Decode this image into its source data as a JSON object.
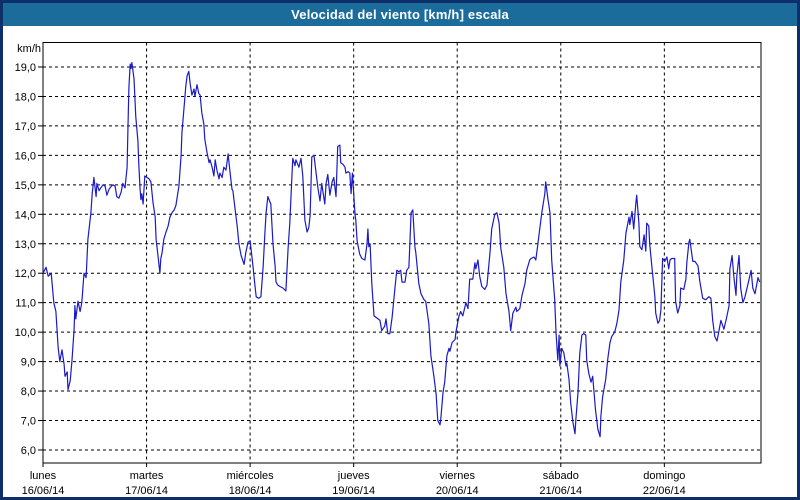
{
  "window": {
    "title": "Velocidad del viento [km/h] escala"
  },
  "colors": {
    "titlebar_bg": "#1b6c9b",
    "titlebar_text": "#ffffff",
    "frame_border": "#0d2f69",
    "plot_bg": "#ffffff",
    "line": "#1a1ac8",
    "grid": "#000000",
    "text": "#000000"
  },
  "chart_data": {
    "type": "line",
    "title": "Velocidad del viento [km/h] escala",
    "grid": "dashed",
    "legend": "none",
    "y_axis": {
      "unit_label": "km/h",
      "min": 6.0,
      "max": 19.0,
      "tick_step": 1.0,
      "tick_labels": [
        "19,0",
        "18,0",
        "17,0",
        "16,0",
        "15,0",
        "14,0",
        "13,0",
        "12,0",
        "11,0",
        "10,0",
        "9,0",
        "8,0",
        "7,0",
        "6,0"
      ]
    },
    "x_axis": {
      "kind": "time",
      "hours_shown": 166.4,
      "day_length_hours": 24,
      "days": [
        {
          "name": "lunes",
          "date": "16/06/14"
        },
        {
          "name": "martes",
          "date": "17/06/14"
        },
        {
          "name": "miércoles",
          "date": "18/06/14"
        },
        {
          "name": "jueves",
          "date": "19/06/14"
        },
        {
          "name": "viernes",
          "date": "20/06/14"
        },
        {
          "name": "sábado",
          "date": "21/06/14"
        },
        {
          "name": "domingo",
          "date": "22/06/14"
        }
      ]
    },
    "series": [
      {
        "name": "Velocidad del viento",
        "x_hours": [
          0,
          0.7,
          1.2,
          1.9,
          2.5,
          3,
          3.5,
          3.9,
          4.4,
          4.9,
          5.1,
          5.6,
          5.8,
          6.3,
          6.7,
          7.2,
          7.4,
          7.6,
          8.1,
          8.6,
          9,
          9.5,
          10,
          10.4,
          11.1,
          11.4,
          11.8,
          12.3,
          12.5,
          13,
          13.4,
          13.9,
          14.4,
          14.8,
          15.3,
          15.8,
          16.2,
          16.7,
          17.1,
          17.6,
          18.1,
          18.5,
          19,
          19.5,
          19.7,
          19.9,
          20.2,
          20.4,
          20.6,
          21.1,
          21.5,
          22,
          22.2,
          22.5,
          22.7,
          22.9,
          23.2,
          23.4,
          23.6,
          24.1,
          24.6,
          25,
          25.5,
          26,
          26.2,
          26.6,
          27.1,
          27.3,
          27.6,
          28,
          28.5,
          29,
          29.4,
          29.9,
          30.4,
          30.8,
          31,
          31.5,
          32,
          32.2,
          32.7,
          33.1,
          33.4,
          33.8,
          34.1,
          34.5,
          35,
          35.2,
          35.7,
          36.1,
          36.4,
          36.8,
          37.3,
          37.5,
          38,
          38.5,
          38.7,
          39.2,
          39.6,
          39.9,
          40.3,
          40.8,
          41,
          41.5,
          41.9,
          42.4,
          42.9,
          43.3,
          43.8,
          44,
          44.5,
          45,
          45.4,
          45.9,
          46.6,
          47,
          47.5,
          48,
          48.4,
          48.7,
          49.1,
          49.4,
          50,
          50.5,
          51,
          51.4,
          51.7,
          52.1,
          52.8,
          53.3,
          53.8,
          54,
          54.4,
          54.9,
          55.6,
          56.3,
          56.8,
          57.2,
          57.7,
          57.9,
          58.4,
          58.6,
          59.3,
          59.8,
          60.2,
          60.7,
          61.2,
          61.6,
          61.9,
          62.3,
          62.8,
          63.3,
          63.7,
          64.2,
          64.6,
          65.3,
          65.6,
          66,
          66.5,
          67,
          67.4,
          67.9,
          68.3,
          68.8,
          69,
          69.5,
          70,
          70.2,
          70.7,
          71.1,
          71.4,
          71.7,
          72.3,
          72.5,
          72.8,
          73.4,
          73.9,
          74.6,
          75.1,
          75.3,
          75.5,
          75.8,
          76.2,
          76.7,
          77.2,
          78.1,
          78.5,
          79.2,
          79.5,
          79.9,
          80.4,
          80.9,
          81.6,
          82,
          82.5,
          82.9,
          83.2,
          83.9,
          84.3,
          84.8,
          85.3,
          85.7,
          86.2,
          86.4,
          87.1,
          87.6,
          88.3,
          88.7,
          89.4,
          89.9,
          90.6,
          91.1,
          91.5,
          92,
          92.2,
          92.7,
          93.1,
          93.6,
          94.1,
          94.3,
          94.8,
          95.5,
          95.7,
          96.4,
          96.8,
          97.3,
          98,
          98.5,
          98.9,
          99.6,
          100.1,
          100.3,
          100.8,
          101.2,
          101.7,
          102.4,
          102.9,
          103.6,
          104,
          104.7,
          105.2,
          105.7,
          106.1,
          106.8,
          107.3,
          108,
          108.4,
          108.9,
          109.6,
          109.8,
          110.5,
          111,
          111.7,
          112.1,
          112.8,
          113.1,
          113.8,
          114.2,
          114.7,
          115.2,
          115.6,
          116.3,
          116.5,
          117,
          117.5,
          117.9,
          118.6,
          118.9,
          119.3,
          119.6,
          119.8,
          120.2,
          120.7,
          121.2,
          121.4,
          121.9,
          122.3,
          122.8,
          123.3,
          123.5,
          124,
          124.4,
          124.9,
          125.3,
          125.8,
          126,
          126.5,
          127,
          127.4,
          127.9,
          128.1,
          128.6,
          129.1,
          129.3,
          129.7,
          130.4,
          130.9,
          131.4,
          131.8,
          132.5,
          133,
          133.5,
          133.9,
          134.6,
          135.1,
          135.8,
          136,
          136.5,
          136.9,
          137.4,
          137.6,
          138.1,
          138.3,
          138.8,
          139.3,
          139.7,
          139.9,
          140.4,
          140.6,
          141.1,
          141.8,
          142,
          142.5,
          142.9,
          143.2,
          143.6,
          144.1,
          144.6,
          145,
          145.3,
          145.7,
          146.4,
          146.6,
          147.1,
          147.6,
          147.8,
          148.5,
          149,
          149.2,
          149.7,
          149.9,
          150.6,
          151.1,
          151.8,
          152.2,
          152.9,
          153.6,
          154.3,
          154.8,
          155.2,
          155.7,
          156.2,
          156.6,
          157.1,
          157.8,
          158.3,
          159,
          159.2,
          159.7,
          160.1,
          160.6,
          160.8,
          161.3,
          161.7,
          162.2,
          162.7,
          163.4,
          164.1,
          164.5,
          165,
          165.7,
          166.1
        ],
        "values": [
          12,
          12.2,
          11.9,
          12,
          11,
          10.7,
          9.5,
          9,
          9.4,
          8.9,
          8.5,
          8.65,
          8.05,
          8.35,
          9,
          10.1,
          10.9,
          10.45,
          11.05,
          10.7,
          11,
          12,
          11.85,
          13.15,
          14.05,
          14.7,
          15.25,
          14.6,
          15.05,
          14.8,
          14.9,
          15,
          14.95,
          14.65,
          14.85,
          14.95,
          15,
          14.95,
          14.6,
          14.55,
          14.75,
          15.05,
          14.9,
          15.6,
          17,
          18.3,
          19.1,
          18.95,
          19.15,
          18.6,
          17.3,
          16.5,
          15.7,
          14.85,
          14.5,
          14.7,
          14.35,
          14.85,
          15.3,
          15.25,
          15.2,
          15.1,
          14.4,
          13.9,
          13.15,
          12.65,
          12,
          12.5,
          12.7,
          13.15,
          13.4,
          13.6,
          13.9,
          14.05,
          14.15,
          14.3,
          14.5,
          14.95,
          16,
          16.75,
          17.65,
          18.35,
          18.7,
          18.85,
          18.45,
          18.05,
          18.25,
          18,
          18.4,
          18.1,
          18.05,
          17.45,
          17.05,
          16.55,
          16.1,
          15.75,
          15.85,
          15.6,
          15.3,
          15.85,
          15.5,
          15.2,
          15.4,
          15.25,
          15.6,
          15.5,
          16.05,
          15.5,
          14.85,
          14.8,
          14.2,
          13.6,
          13,
          12.6,
          12.3,
          12.7,
          13.05,
          13.1,
          12.6,
          12.2,
          11.6,
          11.2,
          11.15,
          11.2,
          12.2,
          13.3,
          14.05,
          14.6,
          14.35,
          13,
          12.25,
          11.7,
          11.6,
          11.55,
          11.5,
          11.4,
          12.85,
          13.7,
          15.35,
          15.9,
          15.65,
          15.85,
          15.6,
          15.9,
          15.3,
          13.8,
          13.4,
          13.55,
          13.95,
          15.95,
          16,
          15.4,
          14.9,
          14.45,
          15.05,
          14.35,
          15.05,
          15.35,
          14.65,
          15.1,
          15.25,
          14.6,
          16.3,
          16.35,
          15.75,
          15.7,
          15.6,
          15.4,
          15.45,
          15.4,
          14.7,
          15.4,
          14,
          13.8,
          13.1,
          12.65,
          12.5,
          12.45,
          13,
          13.5,
          12.9,
          13,
          11.65,
          10.55,
          10.5,
          10.4,
          10.05,
          10.2,
          10.45,
          9.95,
          9.95,
          10.5,
          11.55,
          12.1,
          12.05,
          12.1,
          11.7,
          11.7,
          12.1,
          12.2,
          14.05,
          14.15,
          12.9,
          12.7,
          11.65,
          11.3,
          11.1,
          11.05,
          10.3,
          9.2,
          8.5,
          7.9,
          7,
          6.85,
          7.05,
          7.95,
          8.3,
          9.2,
          9.45,
          9.35,
          9.65,
          9.75,
          10,
          10.55,
          10.7,
          10.55,
          11,
          10.8,
          11.8,
          11.8,
          12.35,
          12.15,
          12.45,
          11.9,
          11.55,
          11.45,
          11.6,
          12.7,
          13.5,
          14,
          14.05,
          13.7,
          12.85,
          12.2,
          11.3,
          10.7,
          10.05,
          10.65,
          10.85,
          10.7,
          10.8,
          11.25,
          11.65,
          12.1,
          12.45,
          12.5,
          12.55,
          12.45,
          13,
          13.6,
          14.05,
          14.7,
          15.1,
          14.55,
          14.05,
          12.45,
          11.1,
          10,
          9.05,
          9.9,
          8.85,
          9.45,
          9.3,
          8.85,
          8.95,
          8.4,
          7.6,
          6.95,
          6.55,
          7.05,
          7.95,
          9.3,
          9.9,
          9.95,
          9.9,
          9.05,
          8.6,
          8.3,
          8.5,
          7.6,
          7.3,
          6.7,
          6.45,
          7.15,
          7.8,
          8.4,
          9.1,
          9.65,
          9.85,
          10,
          10.3,
          10.75,
          11.7,
          12.45,
          13.35,
          13.9,
          13.65,
          14.1,
          13.5,
          14.4,
          14.65,
          13.7,
          12.9,
          12.8,
          13.3,
          12.75,
          13.7,
          13.6,
          13,
          12.25,
          11.2,
          10.65,
          10.3,
          10.4,
          10.75,
          12.5,
          12.4,
          12.55,
          12.15,
          12.45,
          12.5,
          12.5,
          11.05,
          10.65,
          10.9,
          11.5,
          11.45,
          11.8,
          12.35,
          13.05,
          13.15,
          12.4,
          12.4,
          12.25,
          11.75,
          11.15,
          11.1,
          11.2,
          11.15,
          10.4,
          9.85,
          9.7,
          10,
          10.4,
          10.1,
          10.4,
          10.9,
          12.15,
          12.6,
          11.9,
          11.25,
          11.9,
          12.6,
          11.5,
          11,
          11.2,
          11.65,
          12.1,
          11.5,
          11.3,
          11.85,
          11.7
        ]
      }
    ]
  }
}
